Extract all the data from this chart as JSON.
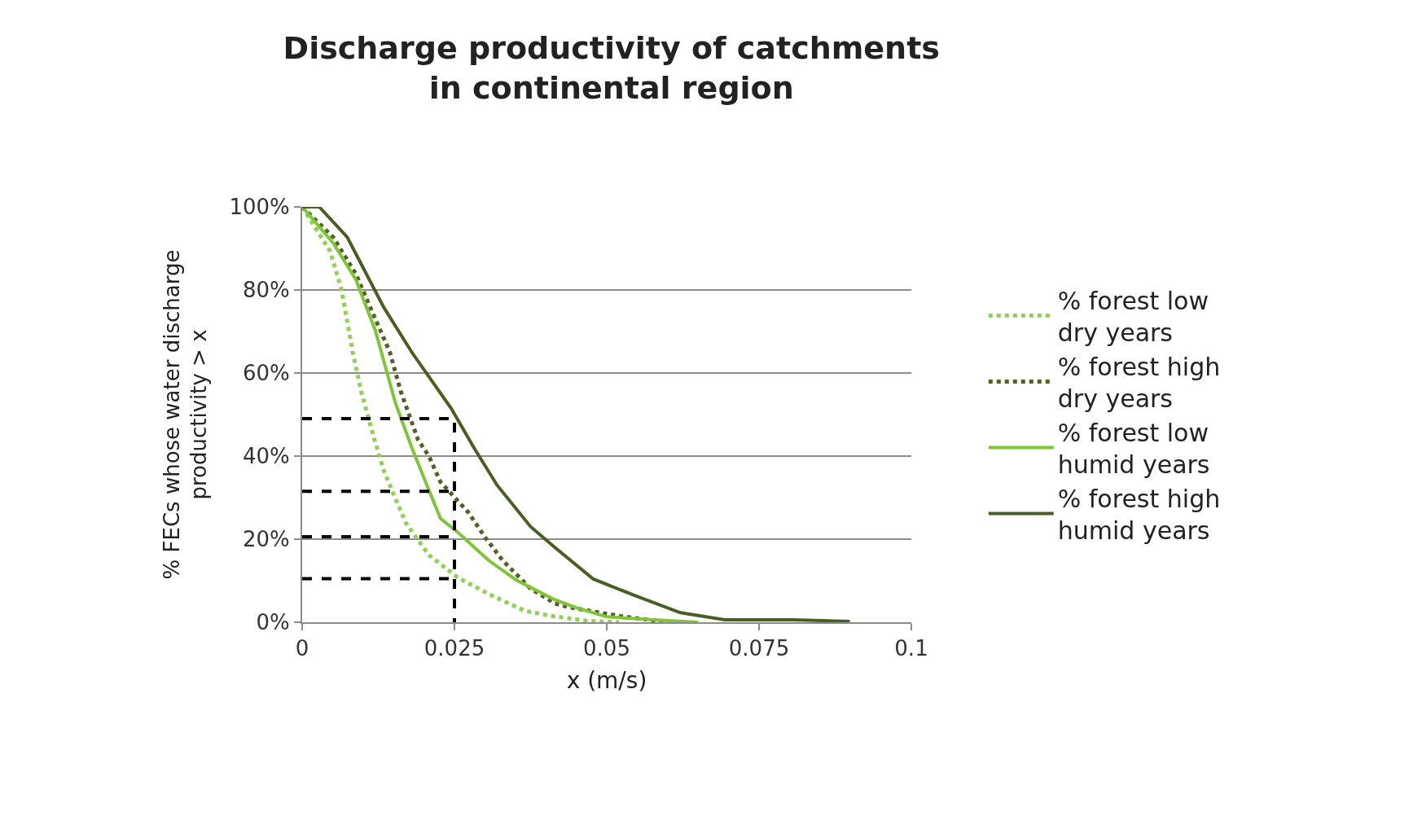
{
  "chart_data": {
    "type": "line",
    "title": "Discharge productivity of catchments\nin continental region",
    "xlabel": "x (m/s)",
    "ylabel": "% FECs whose water discharge\nproductivity > x",
    "xlim": [
      0,
      0.1
    ],
    "xticks": [
      0,
      0.025,
      0.05,
      0.075,
      0.1
    ],
    "ylim": [
      0,
      100
    ],
    "yticks": [
      {
        "value": 0,
        "label": "0%"
      },
      {
        "value": 20,
        "label": "20%"
      },
      {
        "value": 40,
        "label": "40%"
      },
      {
        "value": 60,
        "label": "60%"
      },
      {
        "value": 80,
        "label": "80%"
      },
      {
        "value": 100,
        "label": "100%"
      }
    ],
    "grid": "y",
    "legend": "right",
    "marker": "none",
    "series": [
      {
        "name": "% forest low\ndry years",
        "color": "#92d050",
        "line_style": "dotted",
        "x": [
          0,
          0.0046,
          0.0065,
          0.0083,
          0.0097,
          0.0116,
          0.0134,
          0.0157,
          0.0171,
          0.0208,
          0.0255,
          0.0306,
          0.0366,
          0.0415,
          0.047,
          0.052
        ],
        "values": [
          100,
          89.3,
          79.8,
          65,
          55.5,
          45.3,
          36.5,
          28.4,
          23.7,
          16.2,
          10.8,
          6.8,
          2.7,
          1.4,
          0.3,
          0
        ]
      },
      {
        "name": "% forest high\ndry years",
        "color": "#4f6228",
        "line_style": "dotted",
        "x": [
          0,
          0.0051,
          0.0088,
          0.0116,
          0.0144,
          0.0162,
          0.019,
          0.0208,
          0.0227,
          0.0273,
          0.0301,
          0.0329,
          0.0375,
          0.0415,
          0.0442,
          0.0509,
          0.0531,
          0.06
        ],
        "values": [
          100,
          92.7,
          83.9,
          74.4,
          65,
          55.5,
          44,
          40,
          33.8,
          26.4,
          20.3,
          14.9,
          8.1,
          4.5,
          3.5,
          1.8,
          1.3,
          0
        ]
      },
      {
        "name": "% forest low\nhumid years",
        "color": "#7ec636",
        "line_style": "solid",
        "x": [
          0,
          0.0051,
          0.0088,
          0.012,
          0.0153,
          0.018,
          0.0208,
          0.0227,
          0.0255,
          0.0306,
          0.0352,
          0.0415,
          0.045,
          0.05,
          0.0611,
          0.065
        ],
        "values": [
          100,
          91.3,
          82.5,
          70.3,
          52.8,
          42,
          31.8,
          25,
          21.7,
          14.9,
          10.1,
          5.4,
          3.5,
          1.3,
          0.3,
          0
        ]
      },
      {
        "name": "% forest high\nhumid years",
        "color": "#4a5e23",
        "line_style": "solid",
        "x": [
          0,
          0.0028,
          0.0074,
          0.0134,
          0.018,
          0.0245,
          0.0282,
          0.032,
          0.0375,
          0.0415,
          0.0478,
          0.0545,
          0.0621,
          0.0694,
          0.0805,
          0.0899
        ],
        "values": [
          100,
          100,
          92.7,
          75.8,
          65,
          51.4,
          42,
          33,
          23,
          18,
          10.4,
          6.5,
          2.3,
          0.6,
          0.6,
          0.2
        ]
      },
      {
        "color": "#000000",
        "line_style": "dashed",
        "x": [
          0,
          0.025,
          0.025
        ],
        "values": [
          49,
          49,
          0
        ]
      },
      {
        "color": "#000000",
        "line_style": "dashed",
        "x": [
          0,
          0.025
        ],
        "values": [
          31.5,
          31.5
        ]
      },
      {
        "color": "#000000",
        "line_style": "dashed",
        "x": [
          0,
          0.025
        ],
        "values": [
          20.6,
          20.6
        ]
      },
      {
        "color": "#000000",
        "line_style": "dashed",
        "x": [
          0,
          0.025
        ],
        "values": [
          10.5,
          10.5
        ]
      }
    ]
  }
}
